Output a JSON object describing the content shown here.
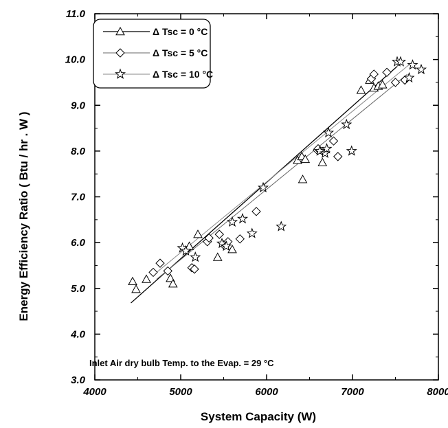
{
  "chart_data": {
    "type": "scatter",
    "xlabel": "System Capacity (W)",
    "ylabel": "Energy Efficiency Ratio ( Btu / hr . W )",
    "xlim": [
      4000,
      8000
    ],
    "ylim": [
      3.0,
      11.0
    ],
    "xticks": [
      "4000",
      "5000",
      "6000",
      "7000",
      "8000"
    ],
    "yticks": [
      "3.0",
      "4.0",
      "5.0",
      "6.0",
      "7.0",
      "8.0",
      "9.0",
      "10.0",
      "11.0"
    ],
    "grid": false,
    "legend_position": "top-left",
    "annotation": "Inlet Air dry bulb Temp. to the Evap. = 29 °C",
    "series": [
      {
        "name": "Δ Tsc = 0 °C",
        "marker": "triangle",
        "points": [
          [
            4440,
            5.15
          ],
          [
            4480,
            4.98
          ],
          [
            4600,
            5.2
          ],
          [
            4880,
            5.22
          ],
          [
            4910,
            5.1
          ],
          [
            5100,
            5.92
          ],
          [
            5200,
            6.18
          ],
          [
            5430,
            5.68
          ],
          [
            5600,
            5.85
          ],
          [
            6360,
            7.8
          ],
          [
            6410,
            7.88
          ],
          [
            6420,
            7.38
          ],
          [
            6450,
            7.82
          ],
          [
            6650,
            7.75
          ],
          [
            7100,
            9.33
          ],
          [
            7200,
            9.55
          ],
          [
            7250,
            9.38
          ],
          [
            7300,
            9.42
          ],
          [
            7350,
            9.45
          ]
        ],
        "fit": [
          [
            4420,
            4.68
          ],
          [
            7520,
            9.85
          ]
        ]
      },
      {
        "name": "Δ Tsc = 5 °C",
        "marker": "diamond",
        "points": [
          [
            4680,
            5.35
          ],
          [
            4760,
            5.55
          ],
          [
            4850,
            5.38
          ],
          [
            5130,
            5.45
          ],
          [
            5160,
            5.42
          ],
          [
            5310,
            6.02
          ],
          [
            5330,
            6.1
          ],
          [
            5450,
            6.18
          ],
          [
            5500,
            5.95
          ],
          [
            5550,
            6.02
          ],
          [
            5690,
            6.08
          ],
          [
            5880,
            6.68
          ],
          [
            6590,
            8.02
          ],
          [
            6600,
            8.05
          ],
          [
            6780,
            8.22
          ],
          [
            6830,
            7.88
          ],
          [
            7220,
            9.58
          ],
          [
            7250,
            9.68
          ],
          [
            7400,
            9.72
          ],
          [
            7500,
            9.5
          ],
          [
            7610,
            9.55
          ]
        ],
        "fit": [
          [
            4720,
            5.2
          ],
          [
            7640,
            9.68
          ]
        ]
      },
      {
        "name": "Δ Tsc = 10 °C",
        "marker": "star",
        "points": [
          [
            5020,
            5.88
          ],
          [
            5060,
            5.82
          ],
          [
            5170,
            5.68
          ],
          [
            5480,
            5.98
          ],
          [
            5530,
            5.92
          ],
          [
            5600,
            6.45
          ],
          [
            5720,
            6.52
          ],
          [
            5830,
            6.2
          ],
          [
            5960,
            7.2
          ],
          [
            6170,
            6.35
          ],
          [
            6620,
            8.0
          ],
          [
            6680,
            7.95
          ],
          [
            6700,
            8.05
          ],
          [
            6720,
            8.4
          ],
          [
            6930,
            8.58
          ],
          [
            6990,
            8.0
          ],
          [
            7520,
            9.95
          ],
          [
            7560,
            9.95
          ],
          [
            7660,
            9.6
          ],
          [
            7700,
            9.88
          ],
          [
            7800,
            9.78
          ]
        ],
        "fit": [
          [
            4720,
            5.35
          ],
          [
            7700,
            9.95
          ]
        ]
      }
    ]
  }
}
